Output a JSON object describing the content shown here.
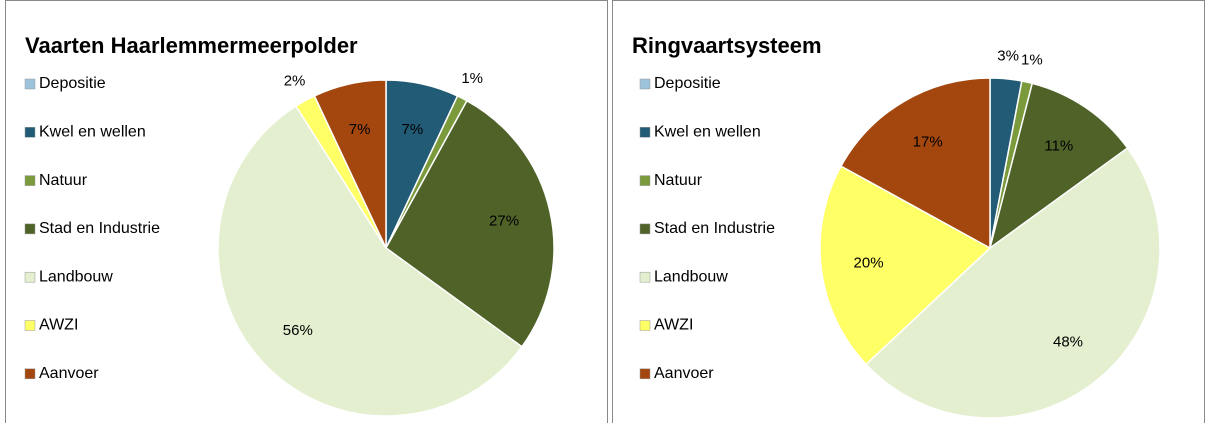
{
  "chart_data": [
    {
      "type": "pie",
      "title": "Vaarten Haarlemmermeerpolder",
      "categories": [
        "Depositie",
        "Kwel en wellen",
        "Natuur",
        "Stad en Industrie",
        "Landbouw",
        "AWZI",
        "Aanvoer"
      ],
      "values": [
        0,
        7,
        1,
        27,
        56,
        2,
        7
      ],
      "value_labels": [
        null,
        "7%",
        "1%",
        "27%",
        "56%",
        "2%",
        "7%"
      ],
      "colors": [
        "#9cc3da",
        "#215b76",
        "#7a9a3c",
        "#4f6228",
        "#e3efcf",
        "#ffff66",
        "#a3470e"
      ],
      "legend": "left"
    },
    {
      "type": "pie",
      "title": "Ringvaartsysteem",
      "categories": [
        "Depositie",
        "Kwel en wellen",
        "Natuur",
        "Stad en Industrie",
        "Landbouw",
        "AWZI",
        "Aanvoer"
      ],
      "values": [
        0,
        3,
        1,
        11,
        48,
        20,
        17
      ],
      "value_labels": [
        null,
        "3%",
        "1%",
        "11%",
        "48%",
        "20%",
        "17%"
      ],
      "colors": [
        "#9cc3da",
        "#215b76",
        "#7a9a3c",
        "#4f6228",
        "#e3efcf",
        "#ffff66",
        "#a3470e"
      ],
      "legend": "left"
    }
  ]
}
